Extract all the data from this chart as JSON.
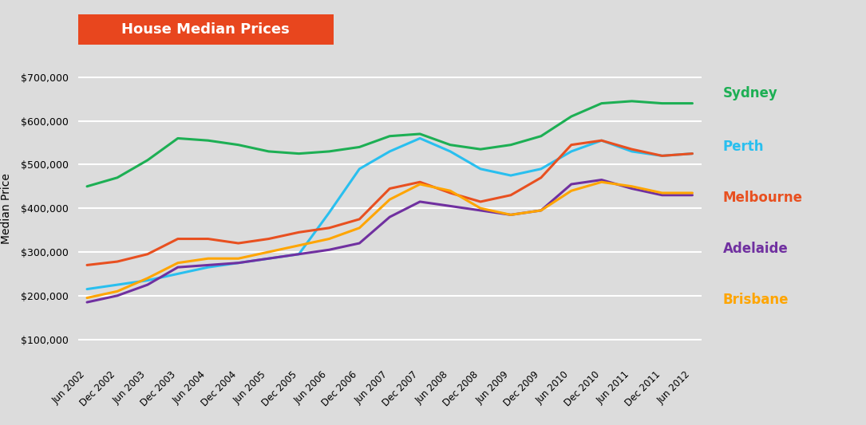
{
  "title": "House Median Prices",
  "title_bg": "#E8461E",
  "title_color": "#FFFFFF",
  "ylabel": "Median Price",
  "background_color": "#DCDCDC",
  "plot_bg": "#DCDCDC",
  "grid_color": "#FFFFFF",
  "ylim": [
    50000,
    750000
  ],
  "yticks": [
    100000,
    200000,
    300000,
    400000,
    500000,
    600000,
    700000
  ],
  "x_labels": [
    "Jun 2002",
    "Dec 2002",
    "Jun 2003",
    "Dec 2003",
    "Jun 2004",
    "Dec 2004",
    "Jun 2005",
    "Dec 2005",
    "Jun 2006",
    "Dec 2006",
    "Jun 2007",
    "Dec 2007",
    "Jun 2008",
    "Dec 2008",
    "Jun 2009",
    "Dec 2009",
    "Jun 2010",
    "Dec 2010",
    "Jun 2011",
    "Dec 2011",
    "Jun 2012"
  ],
  "series": {
    "Sydney": {
      "color": "#1DAF54",
      "values": [
        450000,
        470000,
        510000,
        560000,
        555000,
        545000,
        530000,
        525000,
        530000,
        540000,
        565000,
        570000,
        545000,
        535000,
        545000,
        565000,
        610000,
        640000,
        645000,
        640000,
        640000
      ]
    },
    "Perth": {
      "color": "#29BFEF",
      "values": [
        215000,
        225000,
        235000,
        250000,
        265000,
        275000,
        285000,
        295000,
        390000,
        490000,
        530000,
        560000,
        530000,
        490000,
        475000,
        490000,
        530000,
        555000,
        530000,
        520000,
        525000
      ]
    },
    "Melbourne": {
      "color": "#E85020",
      "values": [
        270000,
        278000,
        295000,
        330000,
        330000,
        320000,
        330000,
        345000,
        355000,
        375000,
        445000,
        460000,
        435000,
        415000,
        430000,
        470000,
        545000,
        555000,
        535000,
        520000,
        525000
      ]
    },
    "Adelaide": {
      "color": "#7030A0",
      "values": [
        185000,
        200000,
        225000,
        265000,
        270000,
        275000,
        285000,
        295000,
        305000,
        320000,
        380000,
        415000,
        405000,
        395000,
        385000,
        395000,
        455000,
        465000,
        445000,
        430000,
        430000
      ]
    },
    "Brisbane": {
      "color": "#FFA500",
      "values": [
        195000,
        210000,
        240000,
        275000,
        285000,
        285000,
        300000,
        315000,
        330000,
        355000,
        420000,
        455000,
        440000,
        400000,
        385000,
        395000,
        440000,
        460000,
        450000,
        435000,
        435000
      ]
    }
  },
  "legend_order": [
    "Sydney",
    "Perth",
    "Melbourne",
    "Adelaide",
    "Brisbane"
  ],
  "legend_fontsize": 12,
  "legend_colors": {
    "Sydney": "#1DAF54",
    "Perth": "#29BFEF",
    "Melbourne": "#E85020",
    "Adelaide": "#7030A0",
    "Brisbane": "#FFA500"
  }
}
